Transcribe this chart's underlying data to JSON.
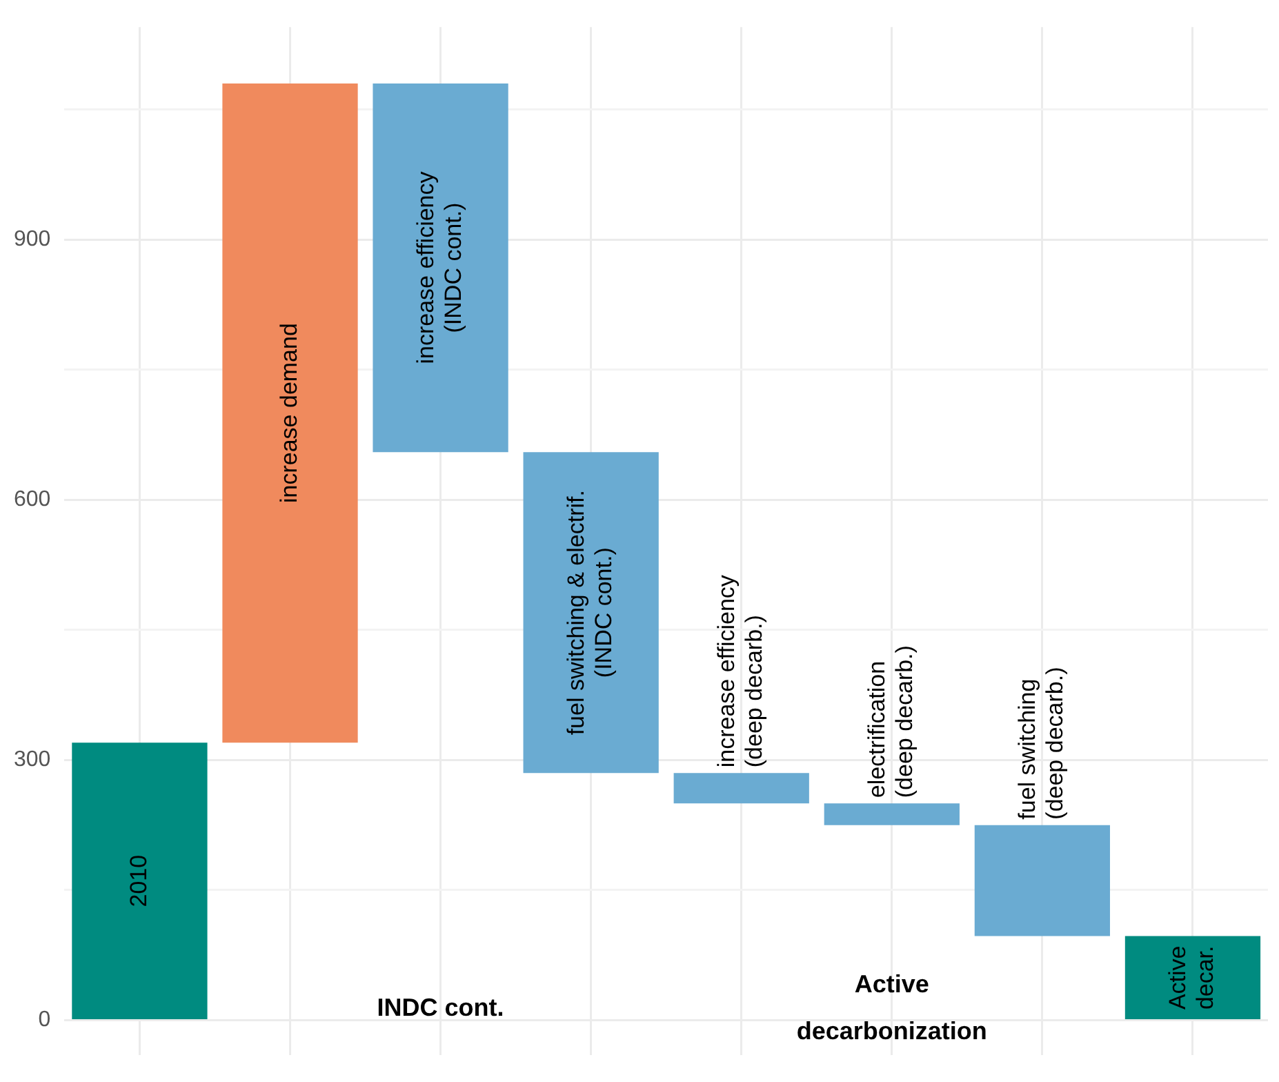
{
  "chart_data": {
    "type": "bar",
    "categories": [
      "2010",
      "increase demand",
      "increase efficiency\n(INDC cont.)",
      "fuel switching & electrif.\n(INDC cont.)",
      "increase efficiency\n(deep decarb.)",
      "electrification\n(deep decarb.)",
      "fuel switching\n(deep decarb.)",
      "Active\ndecar."
    ],
    "base": [
      0,
      320,
      1080,
      655,
      285,
      250,
      225,
      0
    ],
    "values": [
      320,
      760,
      -425,
      -370,
      -35,
      -25,
      -128,
      97
    ],
    "colors": [
      "#008b80",
      "#f08a5d",
      "#6aabd2",
      "#6aabd2",
      "#6aabd2",
      "#6aabd2",
      "#6aabd2",
      "#008b80"
    ],
    "ylim": [
      -40,
      1145
    ],
    "yticks": [
      0,
      {
        "value": 150,
        "label": null
      },
      300,
      {
        "value": 450,
        "label": null
      },
      600,
      {
        "value": 750,
        "label": null
      },
      900,
      {
        "value": 1050,
        "label": null
      }
    ],
    "grid": true,
    "tick_labels": "y",
    "legend": false,
    "annotations": [
      "INDC cont.",
      "Active\ndecarbonization"
    ]
  }
}
